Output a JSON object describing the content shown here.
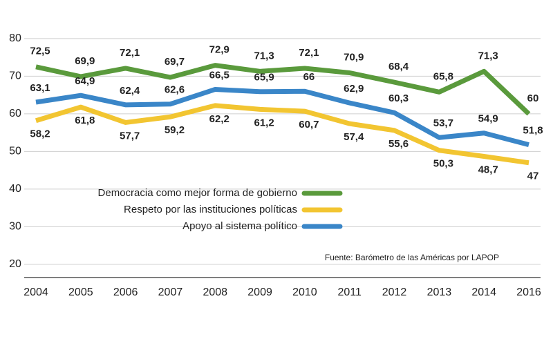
{
  "chart_data": {
    "type": "line",
    "categories": [
      "2004",
      "2005",
      "2006",
      "2007",
      "2008",
      "2009",
      "2010",
      "2011",
      "2012",
      "2013",
      "2014",
      "2016"
    ],
    "series": [
      {
        "name": "Democracia como mejor forma de gobierno",
        "color": "#5a9a3c",
        "values": [
          72.5,
          69.9,
          72.1,
          69.7,
          72.9,
          71.3,
          72.1,
          70.9,
          68.4,
          65.8,
          71.3,
          60
        ],
        "value_labels": [
          "72,5",
          "69,9",
          "72,1",
          "69,7",
          "72,9",
          "71,3",
          "72,1",
          "70,9",
          "68,4",
          "65,8",
          "71,3",
          "60"
        ]
      },
      {
        "name": "Respeto por las instituciones políticas",
        "color": "#f2c531",
        "values": [
          58.2,
          61.8,
          57.7,
          59.2,
          62.2,
          61.2,
          60.7,
          57.4,
          55.6,
          50.3,
          48.7,
          47
        ],
        "value_labels": [
          "58,2",
          "61,8",
          "57,7",
          "59,2",
          "62,2",
          "61,2",
          "60,7",
          "57,4",
          "55,6",
          "50,3",
          "48,7",
          "47"
        ]
      },
      {
        "name": "Apoyo al sistema político",
        "color": "#3a86c8",
        "values": [
          63.1,
          64.9,
          62.4,
          62.6,
          66.5,
          65.9,
          66,
          62.9,
          60.3,
          53.7,
          54.9,
          51.8
        ],
        "value_labels": [
          "63,1",
          "64,9",
          "62,4",
          "62,6",
          "66,5",
          "65,9",
          "66",
          "62,9",
          "60,3",
          "53,7",
          "54,9",
          "51,8"
        ]
      }
    ],
    "ylim": [
      16.5,
      82
    ],
    "yticks": [
      20,
      30,
      40,
      50,
      60,
      70,
      80
    ],
    "grid": true,
    "annotation": "Fuente: Barómetro de las Américas por LAPOP"
  }
}
